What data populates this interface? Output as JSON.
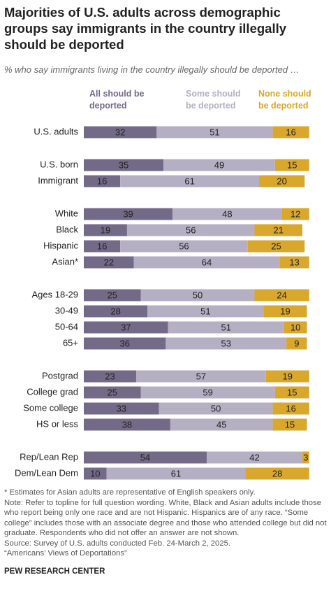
{
  "chart_data": {
    "type": "bar",
    "orientation": "horizontal",
    "stacked": true,
    "title": "Majorities of U.S. adults across demographic groups say immigrants in the country illegally should be deported",
    "subtitle": "% who say immigrants living in the country illegally should be deported …",
    "xlim": [
      0,
      100
    ],
    "categories": [
      "U.S. adults",
      "U.S. born",
      "Immigrant",
      "White",
      "Black",
      "Hispanic",
      "Asian*",
      "Ages 18-29",
      "30-49",
      "50-64",
      "65+",
      "Postgrad",
      "College grad",
      "Some college",
      "HS or less",
      "Rep/Lean Rep",
      "Dem/Lean Dem"
    ],
    "series": [
      {
        "name": "All should be deported",
        "color": "#736a88",
        "values": [
          32,
          35,
          16,
          39,
          19,
          16,
          22,
          25,
          28,
          37,
          36,
          23,
          25,
          33,
          38,
          54,
          10
        ]
      },
      {
        "name": "Some should be deported",
        "color": "#b5afc4",
        "values": [
          51,
          49,
          61,
          48,
          56,
          56,
          64,
          50,
          51,
          51,
          53,
          57,
          59,
          50,
          45,
          42,
          61
        ]
      },
      {
        "name": "None should be deported",
        "color": "#d9a72b",
        "values": [
          16,
          15,
          20,
          12,
          21,
          25,
          13,
          24,
          19,
          10,
          9,
          19,
          15,
          16,
          15,
          3,
          28
        ]
      }
    ],
    "notes": [
      "* Estimates for Asian adults are representative of English speakers only.",
      "Note: Refer to topline for full question wording. White, Black and Asian adults include those who report being only one race and are not Hispanic. Hispanics are of any race. “Some college” includes those with an associate degree and those who attended college but did not graduate. Respondents who did not offer an answer are not shown.",
      "Source: Survey of U.S. adults conducted Feb. 24-March 2, 2025.",
      "“Americans’ Views of Deportations”"
    ],
    "source": "PEW RESEARCH CENTER"
  }
}
